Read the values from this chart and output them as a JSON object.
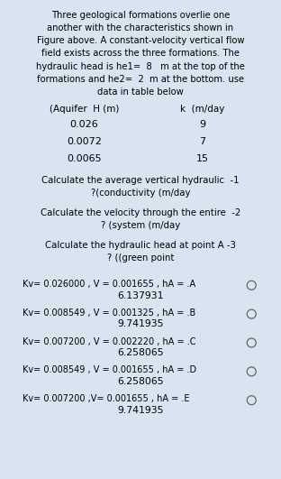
{
  "bg_color": "#d8e4f0",
  "text_color": "#000000",
  "title_lines": [
    "Three geological formations overlie one",
    "another with the characteristics shown in",
    "Figure above. A constant-velocity vertical flow",
    "field exists across the three formations. The",
    "hydraulic head is he1=  8   m at the top of the",
    "formations and he2=  2  m at the bottom. use",
    "data in table below"
  ],
  "table_header_left": "(Aquifer  H (m)",
  "table_header_right": "k  (m/day",
  "table_rows": [
    [
      "0.026",
      "9"
    ],
    [
      "0.0072",
      "7"
    ],
    [
      "0.0065",
      "15"
    ]
  ],
  "questions": [
    [
      "Calculate the average vertical hydraulic  -1",
      "?(conductivity (m/day"
    ],
    [
      "Calculate the velocity through the entire  -2",
      "? (system (m/day"
    ],
    [
      "Calculate the hydraulic head at point A -3",
      "? ((green point"
    ]
  ],
  "options": [
    {
      "text": "Kv= 0.026000 , V = 0.001655 , hA = .A",
      "value": "6.137931"
    },
    {
      "text": "Kv= 0.008549 , V = 0.001325 , hA = .B",
      "value": "9.741935"
    },
    {
      "text": "Kv= 0.007200 , V = 0.002220 , hA = .C",
      "value": "6.258065"
    },
    {
      "text": "Kv= 0.008549 , V = 0.001655 , hA = .D",
      "value": "6.258065"
    },
    {
      "text": "Kv= 0.007200 ,V= 0.001655 , hA = .E",
      "value": "9.741935"
    }
  ],
  "fig_width": 3.12,
  "fig_height": 5.31,
  "dpi": 100
}
